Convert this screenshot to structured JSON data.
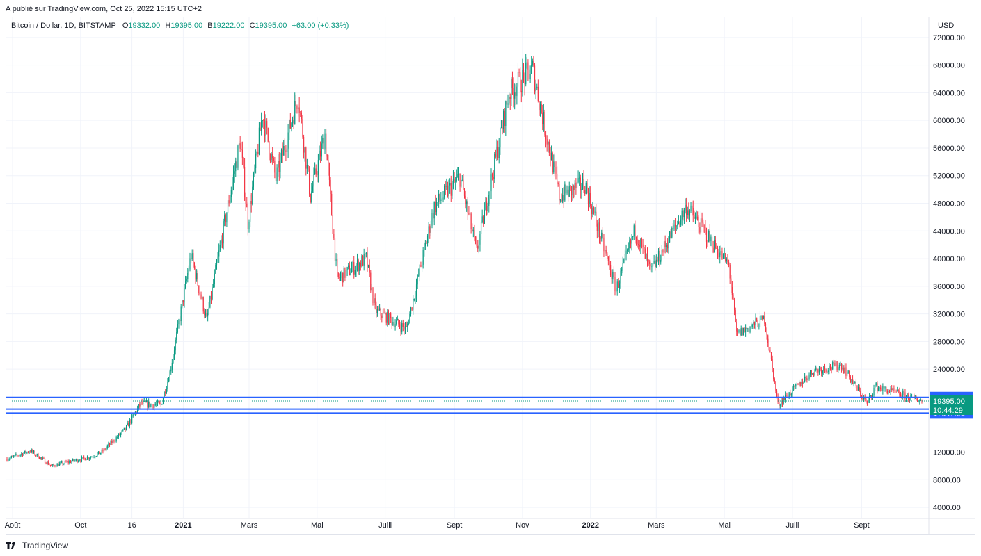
{
  "published": "A publié sur TradingView.com, Oct 25, 2022 15:15 UTC+2",
  "footer": {
    "brand": "TradingView"
  },
  "colors": {
    "up": "#089981",
    "down": "#f23645",
    "level": "#2962ff",
    "grid": "#f0f3fa",
    "axis_text": "#131722"
  },
  "legend": {
    "symbol": "Bitcoin / Dollar, 1D, BITSTAMP",
    "o_key": "O",
    "o": "19332.00",
    "h_key": "H",
    "h": "19395.00",
    "l_key": "B",
    "l": "19222.00",
    "c_key": "C",
    "c": "19395.00",
    "change": "+63.00 (+0.33%)"
  },
  "currency": "USD",
  "chart_data": {
    "type": "candlestick",
    "title": "Bitcoin / Dollar, 1D, BITSTAMP",
    "ylim": [
      2500,
      75000
    ],
    "y_ticks": [
      72000,
      68000,
      64000,
      60000,
      56000,
      52000,
      48000,
      44000,
      40000,
      36000,
      32000,
      28000,
      24000,
      12000,
      8000,
      4000
    ],
    "y_tick_labels": [
      "72000.00",
      "68000.00",
      "64000.00",
      "60000.00",
      "56000.00",
      "52000.00",
      "48000.00",
      "44000.00",
      "40000.00",
      "36000.00",
      "32000.00",
      "28000.00",
      "24000.00",
      "12000.00",
      "8000.00",
      "4000.00"
    ],
    "x_ticks": [
      {
        "label": "Août",
        "date": "2020-08-01",
        "bold": false
      },
      {
        "label": "Oct",
        "date": "2020-10-01",
        "bold": false
      },
      {
        "label": "16",
        "date": "2020-11-16",
        "bold": false
      },
      {
        "label": "2021",
        "date": "2021-01-01",
        "bold": true
      },
      {
        "label": "Mars",
        "date": "2021-03-01",
        "bold": false
      },
      {
        "label": "Mai",
        "date": "2021-05-01",
        "bold": false
      },
      {
        "label": "Juill",
        "date": "2021-07-01",
        "bold": false
      },
      {
        "label": "Sept",
        "date": "2021-09-01",
        "bold": false
      },
      {
        "label": "Nov",
        "date": "2021-11-01",
        "bold": false
      },
      {
        "label": "2022",
        "date": "2022-01-01",
        "bold": true
      },
      {
        "label": "Mars",
        "date": "2022-03-01",
        "bold": false
      },
      {
        "label": "Mai",
        "date": "2022-05-01",
        "bold": false
      },
      {
        "label": "Juill",
        "date": "2022-07-01",
        "bold": false
      },
      {
        "label": "Sept",
        "date": "2022-09-01",
        "bold": false
      }
    ],
    "price_path": [
      [
        "2020-07-27",
        11000
      ],
      [
        "2020-08-17",
        12200
      ],
      [
        "2020-09-05",
        10000
      ],
      [
        "2020-10-10",
        11300
      ],
      [
        "2020-10-20",
        12000
      ],
      [
        "2020-11-10",
        15300
      ],
      [
        "2020-11-24",
        19000
      ],
      [
        "2020-12-12",
        18800
      ],
      [
        "2020-12-20",
        23500
      ],
      [
        "2021-01-08",
        40500
      ],
      [
        "2021-01-22",
        31000
      ],
      [
        "2021-02-08",
        46000
      ],
      [
        "2021-02-21",
        57000
      ],
      [
        "2021-02-28",
        45200
      ],
      [
        "2021-03-13",
        61000
      ],
      [
        "2021-03-25",
        51500
      ],
      [
        "2021-04-14",
        63500
      ],
      [
        "2021-04-25",
        49000
      ],
      [
        "2021-05-08",
        58000
      ],
      [
        "2021-05-19",
        37000
      ],
      [
        "2021-06-14",
        40000
      ],
      [
        "2021-06-22",
        32500
      ],
      [
        "2021-07-20",
        29800
      ],
      [
        "2021-08-14",
        47500
      ],
      [
        "2021-09-06",
        51800
      ],
      [
        "2021-09-21",
        41000
      ],
      [
        "2021-10-20",
        64000
      ],
      [
        "2021-11-10",
        67500
      ],
      [
        "2021-12-04",
        49000
      ],
      [
        "2021-12-27",
        50800
      ],
      [
        "2022-01-24",
        35500
      ],
      [
        "2022-02-10",
        44200
      ],
      [
        "2022-02-24",
        38000
      ],
      [
        "2022-03-28",
        47500
      ],
      [
        "2022-05-05",
        39000
      ],
      [
        "2022-05-12",
        29000
      ],
      [
        "2022-06-06",
        31300
      ],
      [
        "2022-06-18",
        18900
      ],
      [
        "2022-07-20",
        23800
      ],
      [
        "2022-08-14",
        24600
      ],
      [
        "2022-09-06",
        19000
      ],
      [
        "2022-09-13",
        21500
      ],
      [
        "2022-10-25",
        19395
      ]
    ],
    "levels": [
      {
        "value": 19920.12,
        "label": "19920.12",
        "color": "#2962ff",
        "style": "solid"
      },
      {
        "value": 18224.96,
        "label": "18224.96",
        "color": "#2962ff",
        "style": "solid"
      },
      {
        "value": 17647.91,
        "label": "17647.91",
        "color": "#2962ff",
        "style": "solid"
      }
    ],
    "last_price": {
      "value": 19395.0,
      "label": "19395.00",
      "countdown": "10:44:29",
      "color": "#089981"
    }
  }
}
